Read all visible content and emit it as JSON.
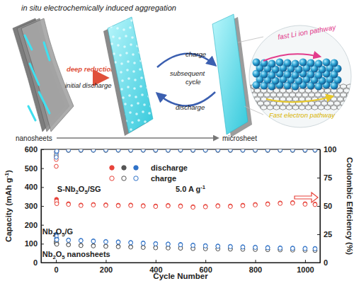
{
  "chart_data": {
    "type": "scatter",
    "xlabel": "Cycle Number",
    "ylabel": "Capacity (mAh g-1)",
    "y2label": "Coulombic Efficiency (%)",
    "x": [
      1,
      2,
      3,
      50,
      100,
      150,
      200,
      250,
      300,
      350,
      400,
      450,
      500,
      550,
      600,
      650,
      700,
      750,
      800,
      850,
      900,
      950,
      1000,
      1040
    ],
    "xlim": [
      -60,
      1060
    ],
    "xticks": [
      0,
      200,
      400,
      600,
      800,
      1000
    ],
    "ylim": [
      0,
      600
    ],
    "yticks": [
      0,
      100,
      200,
      300,
      400,
      500,
      600
    ],
    "y2lim": [
      0,
      100
    ],
    "y2ticks": [
      0,
      25,
      50,
      75,
      100
    ],
    "legend": "top-left",
    "series": [
      {
        "name": "discharge",
        "color": "#e8433a",
        "marker": "filled-circle",
        "values": [
          560,
          335,
          318,
          312,
          305,
          308,
          306,
          304,
          305,
          302,
          300,
          303,
          301,
          296,
          298,
          302,
          300,
          304,
          308,
          312,
          316,
          318,
          312,
          310
        ]
      },
      {
        "name": "charge",
        "color": "#e8433a",
        "marker": "open-circle",
        "values": [
          510,
          325,
          312,
          308,
          302,
          305,
          303,
          301,
          302,
          299,
          297,
          300,
          298,
          293,
          295,
          299,
          297,
          301,
          305,
          309,
          313,
          315,
          309,
          307
        ]
      },
      {
        "name": "discharge",
        "color": "#555555",
        "marker": "filled-circle",
        "values": [
          112,
          102,
          100,
          96,
          92,
          90,
          88,
          86,
          84,
          82,
          80,
          79,
          78,
          76,
          75,
          74,
          73,
          72,
          71,
          70,
          69,
          68,
          67,
          66
        ]
      },
      {
        "name": "charge",
        "color": "#555555",
        "marker": "open-circle",
        "values": [
          105,
          99,
          97,
          94,
          90,
          88,
          86,
          84,
          82,
          80,
          78,
          77,
          76,
          74,
          73,
          72,
          71,
          70,
          69,
          68,
          67,
          66,
          65,
          64
        ]
      },
      {
        "name": "discharge",
        "color": "#2f72c8",
        "marker": "filled-circle",
        "values": [
          150,
          128,
          124,
          120,
          118,
          115,
          112,
          110,
          107,
          104,
          101,
          99,
          96,
          93,
          90,
          88,
          86,
          84,
          82,
          80,
          78,
          77,
          76,
          75
        ]
      },
      {
        "name": "charge",
        "color": "#2f72c8",
        "marker": "open-circle",
        "values": [
          140,
          124,
          121,
          118,
          116,
          113,
          110,
          108,
          105,
          102,
          99,
          97,
          94,
          91,
          88,
          86,
          84,
          82,
          80,
          78,
          76,
          75,
          74,
          73
        ]
      },
      {
        "color": "#e8433a",
        "marker": "open-circle",
        "axis": "y2",
        "values": [
          91,
          97,
          98.5,
          99.5,
          99.6,
          99.7,
          99.7,
          99.6,
          99.7,
          99.7,
          99.6,
          99.7,
          99.7,
          99.6,
          99.7,
          99.7,
          99.6,
          99.7,
          99.7,
          99.7,
          99.6,
          99.7,
          99.7,
          99.7
        ]
      },
      {
        "color": "#555555",
        "marker": "open-circle",
        "axis": "y2",
        "values": [
          95,
          98,
          98.5,
          99,
          99,
          99.1,
          99,
          99.1,
          99,
          99.1,
          99,
          99,
          99.1,
          99,
          99.1,
          99,
          99,
          99.1,
          99,
          99,
          99.1,
          99,
          99,
          99.1
        ]
      },
      {
        "color": "#2f72c8",
        "marker": "open-circle",
        "axis": "y2",
        "values": [
          93,
          97.5,
          98.5,
          99.3,
          99.4,
          99.3,
          99.4,
          99.4,
          99.3,
          99.4,
          99.4,
          99.3,
          99.4,
          99.4,
          99.3,
          99.4,
          99.4,
          99.3,
          99.4,
          99.4,
          99.3,
          99.4,
          99.4,
          99.4
        ]
      }
    ],
    "annotations": [
      {
        "text": "S-Nb2O5/SG",
        "x": 5,
        "y": 375
      },
      {
        "text": "5.0 A g-1",
        "x": 480,
        "y": 375
      },
      {
        "text": "Nb2O5/G",
        "x": -55,
        "y": 150
      },
      {
        "text": "Nb2O5 nanosheets",
        "x": -55,
        "y": 30
      }
    ]
  },
  "diagram": {
    "title": "in situ electrochemically induced aggregation",
    "arrow_1": [
      "deep reduction",
      "initial discharge"
    ],
    "cycle": [
      "charge",
      "subsequent",
      "cycle",
      "discharge"
    ],
    "start": "nanosheets",
    "end": "microsheet",
    "inset": [
      "fast Li ion pathway",
      "Fast electron pathway"
    ]
  }
}
